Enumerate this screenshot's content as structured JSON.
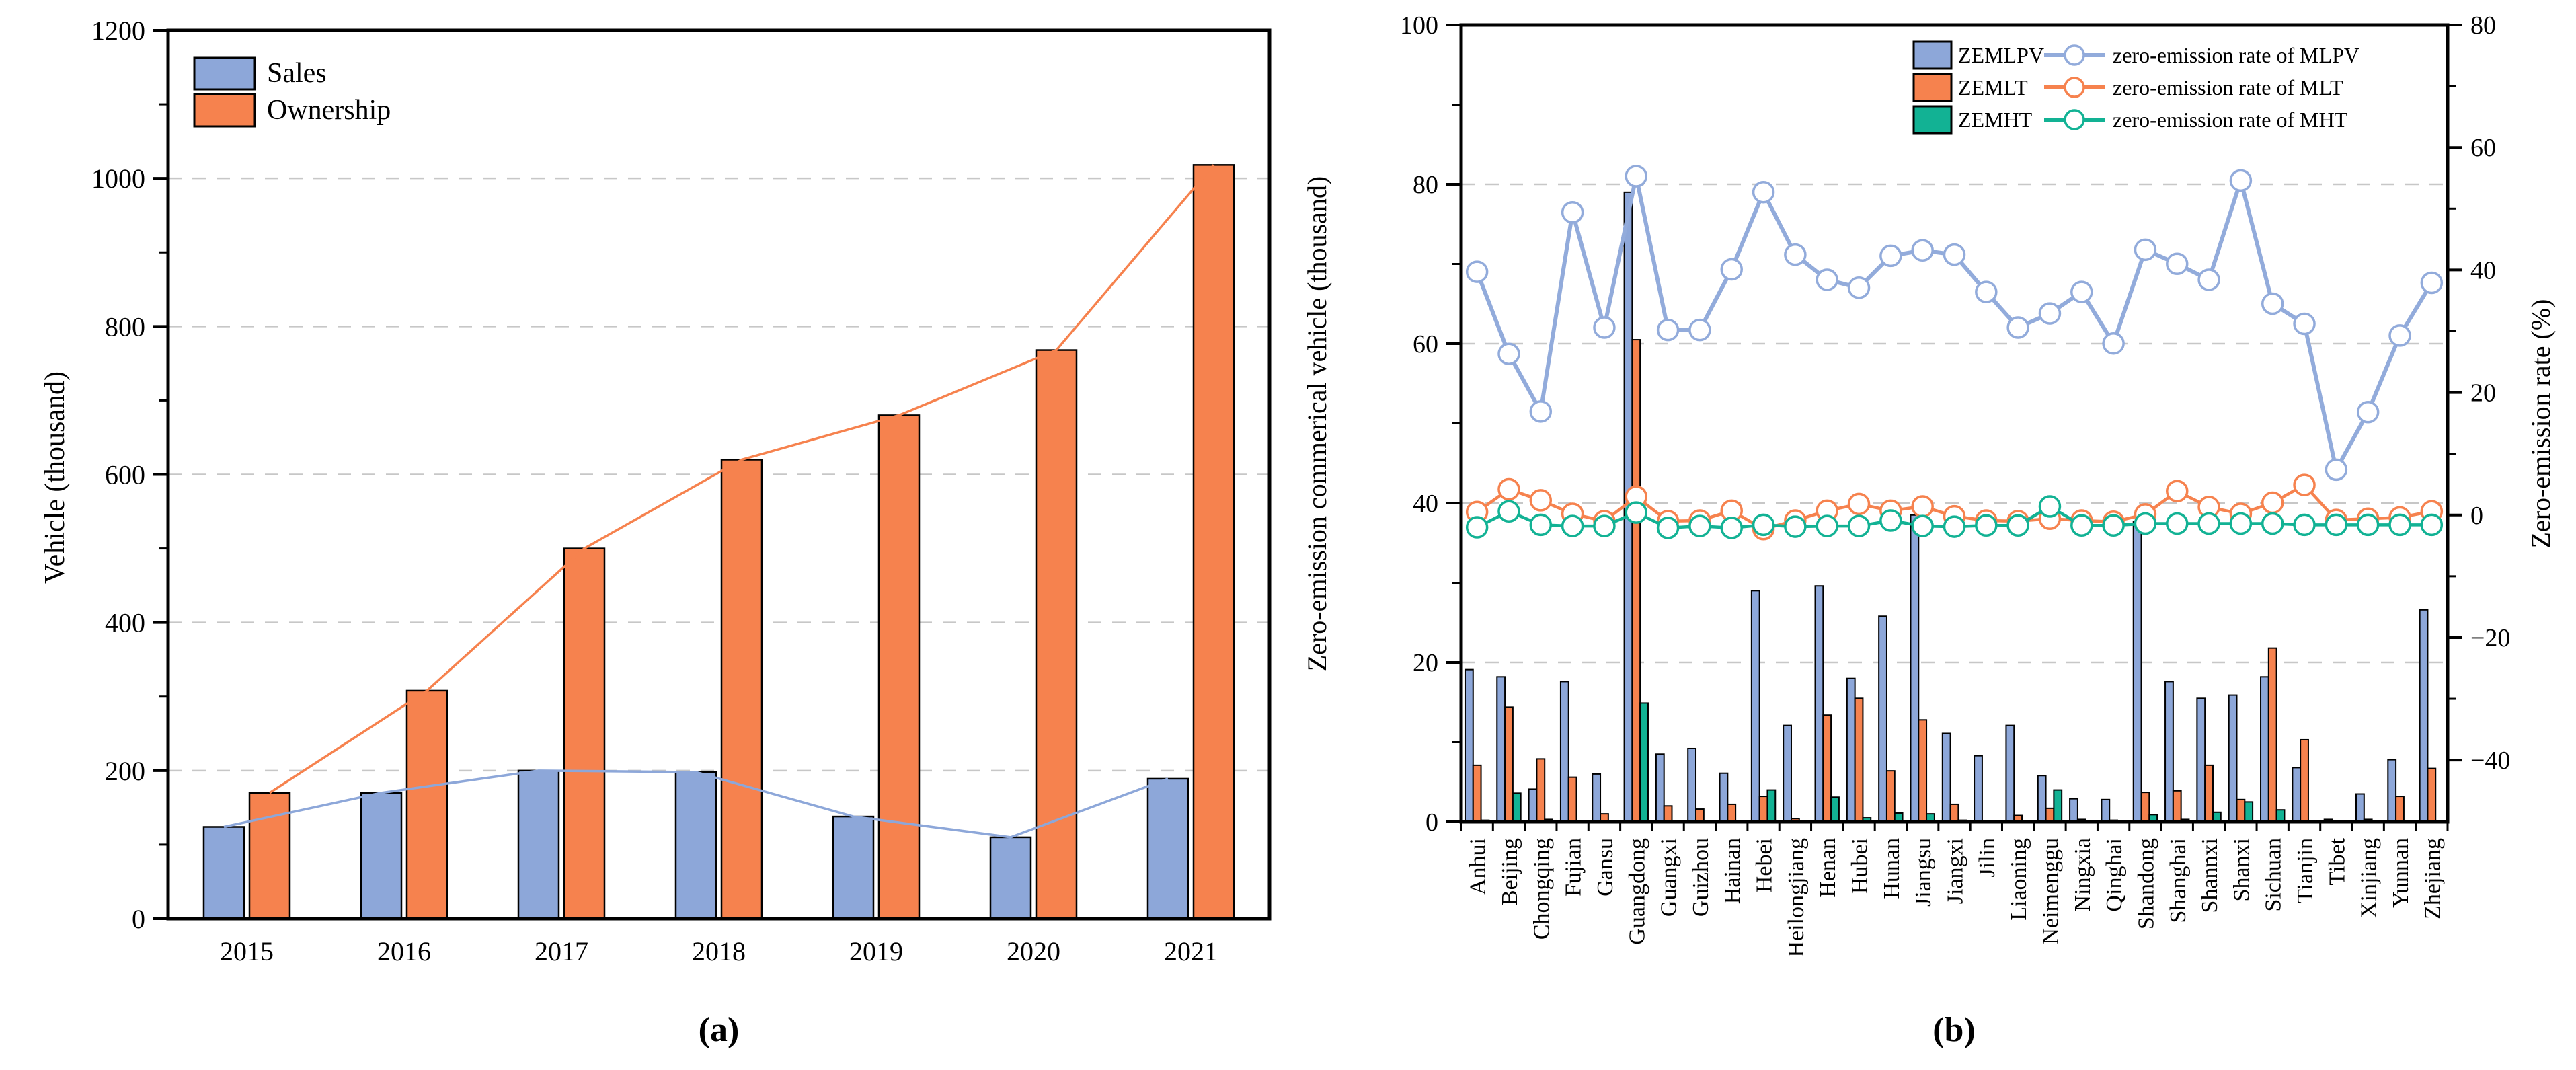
{
  "panel_a": {
    "caption": "(a)",
    "ylabel": "Vehicle (thousand)",
    "legend": [
      "Sales",
      "Ownership"
    ]
  },
  "panel_b": {
    "caption": "(b)",
    "ylabel_left": "Zero-emission commerical vehicle (thousand)",
    "ylabel_right": "Zero-emission rate (%)",
    "legend_bars": [
      "ZEMLPV",
      "ZEMLT",
      "ZEMHT"
    ],
    "legend_lines": [
      "zero-emission rate of MLPV",
      "zero-emission rate of MLT",
      "zero-emission rate of MHT"
    ]
  },
  "colors": {
    "blue_bar": "#8DA7D9",
    "orange_bar": "#F6824E",
    "teal_bar": "#12B294",
    "blue_line": "#92ABDB",
    "orange_line": "#F6824E",
    "teal_line": "#12B294",
    "grid": "#C7C7C7",
    "axis": "#000000",
    "marker_fill": "#FFFFFF"
  },
  "chart_data": [
    {
      "panel": "a",
      "type": "bar",
      "title": "",
      "xlabel": "",
      "ylabel": "Vehicle (thousand)",
      "categories": [
        "2015",
        "2016",
        "2017",
        "2018",
        "2019",
        "2020",
        "2021"
      ],
      "series": [
        {
          "name": "Sales",
          "color_key": "blue_bar",
          "values": [
            124,
            170,
            200,
            198,
            138,
            110,
            189
          ]
        },
        {
          "name": "Ownership",
          "color_key": "orange_bar",
          "values": [
            170,
            308,
            500,
            620,
            680,
            768,
            1018
          ]
        }
      ],
      "overlay_lines": true,
      "ylim": [
        0,
        1200
      ],
      "yticks": [
        0,
        200,
        400,
        600,
        800,
        1000,
        1200
      ],
      "yticks_minor": [
        100,
        300,
        500,
        700,
        900,
        1100
      ],
      "grid_values": [
        200,
        400,
        600,
        800,
        1000
      ],
      "grid": "dashed-horizontal",
      "legend_position": "upper-left"
    },
    {
      "panel": "b",
      "type": "bar+line",
      "title": "",
      "ylabel_left": "Zero-emission commerical vehicle (thousand)",
      "ylabel_right": "Zero-emission rate (%)",
      "categories": [
        "Anhui",
        "Beijing",
        "Chongqing",
        "Fujian",
        "Gansu",
        "Guangdong",
        "Guangxi",
        "Guizhou",
        "Hainan",
        "Hebei",
        "Heilongjiang",
        "Henan",
        "Hubei",
        "Hunan",
        "Jiangsu",
        "Jiangxi",
        "Jilin",
        "Liaoning",
        "Neimenggu",
        "Ningxia",
        "Qinghai",
        "Shandong",
        "Shanghai",
        "Shannxi",
        "Shanxi",
        "Sichuan",
        "Tianjin",
        "Tibet",
        "Xinjiang",
        "Yunnan",
        "Zhejiang"
      ],
      "bar_series": [
        {
          "name": "ZEMLPV",
          "color_key": "blue_bar",
          "axis": "left",
          "values": [
            19.1,
            18.2,
            4.1,
            17.6,
            6.0,
            79.0,
            8.5,
            9.2,
            6.1,
            29.0,
            12.1,
            29.6,
            18.0,
            25.8,
            38.5,
            11.1,
            8.3,
            12.1,
            5.8,
            2.9,
            2.8,
            37.7,
            17.6,
            15.5,
            15.9,
            18.2,
            6.8,
            0.3,
            3.5,
            7.8,
            26.6
          ]
        },
        {
          "name": "ZEMLT",
          "color_key": "orange_bar",
          "axis": "left",
          "values": [
            7.1,
            14.4,
            7.9,
            5.6,
            1.0,
            60.5,
            2.0,
            1.6,
            2.2,
            3.2,
            0.4,
            13.4,
            15.5,
            6.4,
            12.8,
            2.2,
            0.1,
            0.8,
            1.7,
            0.3,
            0.2,
            3.7,
            3.9,
            7.1,
            2.8,
            21.8,
            10.3,
            0.1,
            0.3,
            3.2,
            6.7
          ]
        },
        {
          "name": "ZEMHT",
          "color_key": "teal_bar",
          "axis": "left",
          "values": [
            0.2,
            3.6,
            0.3,
            0.1,
            0.1,
            14.9,
            0.1,
            0.1,
            0.1,
            4.0,
            0.1,
            3.1,
            0.5,
            1.1,
            1.0,
            0.2,
            0.1,
            0.1,
            4.0,
            0.1,
            0.1,
            0.9,
            0.3,
            1.2,
            2.5,
            1.5,
            0.1,
            0.1,
            0.1,
            0.1,
            0.1
          ]
        }
      ],
      "line_series": [
        {
          "name": "zero-emission rate of MLPV",
          "color_key": "blue_line",
          "axis": "right",
          "line_width": 6,
          "values": [
            39.7,
            26.3,
            16.9,
            49.4,
            30.6,
            55.3,
            30.2,
            30.2,
            40.1,
            52.7,
            42.5,
            38.4,
            37.1,
            42.3,
            43.2,
            42.5,
            36.4,
            30.6,
            32.9,
            36.4,
            28.0,
            43.3,
            41.0,
            38.4,
            54.6,
            34.5,
            31.2,
            7.4,
            16.8,
            29.3,
            37.9
          ]
        },
        {
          "name": "zero-emission rate of MLT",
          "color_key": "orange_line",
          "axis": "right",
          "line_width": 4.5,
          "values": [
            0.5,
            4.2,
            2.4,
            0.2,
            -1.0,
            3.0,
            -1.0,
            -0.9,
            0.7,
            -2.3,
            -0.9,
            0.7,
            1.8,
            0.7,
            1.4,
            -0.2,
            -0.9,
            -1.0,
            -0.6,
            -0.9,
            -1.1,
            0.1,
            3.9,
            1.3,
            0.2,
            2.0,
            4.9,
            -0.8,
            -0.6,
            -0.4,
            0.6
          ]
        },
        {
          "name": "zero-emission rate of MHT",
          "color_key": "teal_line",
          "axis": "right",
          "line_width": 4.5,
          "values": [
            -2.0,
            0.6,
            -1.6,
            -1.8,
            -1.8,
            0.4,
            -2.1,
            -1.8,
            -2.1,
            -1.6,
            -1.9,
            -1.8,
            -1.8,
            -0.9,
            -1.8,
            -1.9,
            -1.7,
            -1.7,
            1.4,
            -1.7,
            -1.7,
            -1.4,
            -1.4,
            -1.4,
            -1.4,
            -1.4,
            -1.6,
            -1.6,
            -1.6,
            -1.6,
            -1.6
          ]
        }
      ],
      "ylim_left": [
        0,
        100
      ],
      "yticks_left": [
        0,
        20,
        40,
        60,
        80,
        100
      ],
      "yticks_left_minor": [
        10,
        30,
        50,
        70,
        90
      ],
      "grid_values_left": [
        20,
        40,
        60,
        80
      ],
      "right_axis": {
        "ticks": [
          -40,
          -20,
          0,
          20,
          40,
          60,
          80
        ],
        "ticks_minor": [
          -30,
          -10,
          10,
          30,
          50,
          70
        ],
        "zero_at_left_value": 38.5,
        "left_units_per_percent": 0.76875
      },
      "grid": "dashed-horizontal",
      "legend_position": "upper-right"
    }
  ]
}
